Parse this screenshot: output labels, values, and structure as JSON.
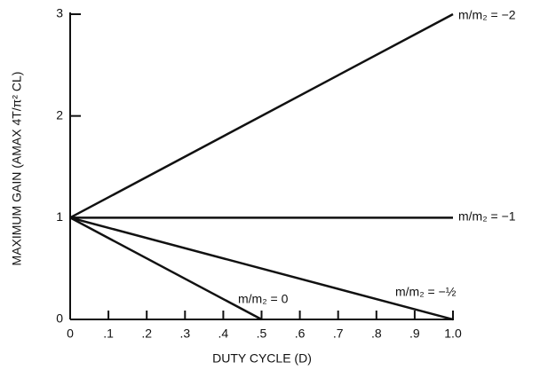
{
  "chart_data": {
    "type": "line",
    "xlabel": "DUTY CYCLE (D)",
    "ylabel": "MAXIMUM GAIN (AMAX 4T/π² CL)",
    "xlim": [
      0,
      1
    ],
    "ylim": [
      0,
      3
    ],
    "xticks": [
      0,
      {
        "value": 0.1,
        "label": ".1"
      },
      {
        "value": 0.2,
        "label": ".2"
      },
      {
        "value": 0.3,
        "label": ".3"
      },
      {
        "value": 0.4,
        "label": ".4"
      },
      {
        "value": 0.5,
        "label": ".5"
      },
      {
        "value": 0.6,
        "label": ".6"
      },
      {
        "value": 0.7,
        "label": ".7"
      },
      {
        "value": 0.8,
        "label": ".8"
      },
      {
        "value": 0.9,
        "label": ".9"
      },
      {
        "value": 1,
        "label": "1.0"
      }
    ],
    "yticks": [
      0,
      1,
      2,
      3
    ],
    "color": "#111111",
    "series": [
      {
        "name": "m/m₂ = −2",
        "x": [
          0,
          1
        ],
        "values": [
          1,
          3
        ]
      },
      {
        "name": "m/m₂ = −1",
        "x": [
          0,
          1
        ],
        "values": [
          1,
          1
        ]
      },
      {
        "name": "m/m₂ = −½",
        "x": [
          0,
          1
        ],
        "values": [
          1,
          0
        ]
      },
      {
        "name": "m/m₂ = 0",
        "x": [
          0,
          0.5
        ],
        "values": [
          1,
          0
        ]
      }
    ]
  }
}
